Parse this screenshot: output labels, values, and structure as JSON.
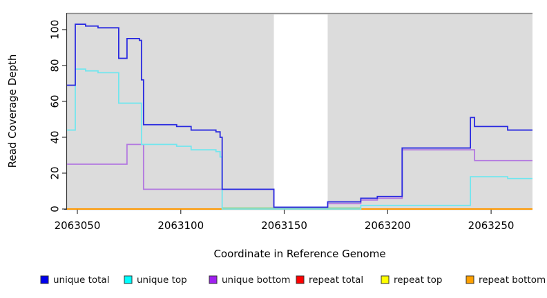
{
  "figure": {
    "background": "#ffffff",
    "plot_background": "#dcdcdc",
    "axis_color": "#333333",
    "top_border_color": "#8c8c8c",
    "text_color": "#000000"
  },
  "chart_data": {
    "type": "line",
    "style": "step",
    "title": "",
    "xlabel": "Coordinate in Reference Genome",
    "ylabel": "Read Coverage Depth",
    "xlim": [
      2063045,
      2063270
    ],
    "ylim": [
      0,
      109.2
    ],
    "grid": false,
    "x_ticks": [
      2063050,
      2063100,
      2063150,
      2063200,
      2063250
    ],
    "x_tick_labels": [
      "2063050",
      "2063100",
      "2063150",
      "2063200",
      "2063250"
    ],
    "y_ticks": [
      0,
      20,
      40,
      60,
      80,
      100
    ],
    "y_tick_labels": [
      "0",
      "20",
      "40",
      "60",
      "80",
      "100"
    ],
    "highlight_region": {
      "x_start": 2063145,
      "x_end": 2063171,
      "color": "#ffffff",
      "meaning": "uncovered gap band drawn over gray background"
    },
    "baseline_artifact": {
      "color": "#90d795",
      "x_start": 2063120,
      "x_end": 2063187,
      "y": 0.6,
      "meaning": "green blend where cyan/yellow zero lines overlap"
    },
    "series": [
      {
        "name": "unique total",
        "line_color": "#2a2ae0",
        "points": [
          [
            2063045,
            69
          ],
          [
            2063049,
            103
          ],
          [
            2063054,
            102
          ],
          [
            2063060,
            101
          ],
          [
            2063070,
            84
          ],
          [
            2063074,
            95
          ],
          [
            2063080,
            94
          ],
          [
            2063081,
            72
          ],
          [
            2063082,
            47
          ],
          [
            2063098,
            46
          ],
          [
            2063105,
            44
          ],
          [
            2063117,
            43
          ],
          [
            2063119,
            40
          ],
          [
            2063120,
            11
          ],
          [
            2063145,
            1
          ],
          [
            2063171,
            4
          ],
          [
            2063187,
            6
          ],
          [
            2063195,
            7
          ],
          [
            2063207,
            34
          ],
          [
            2063240,
            51
          ],
          [
            2063242,
            46
          ],
          [
            2063258,
            44
          ]
        ]
      },
      {
        "name": "unique top",
        "line_color": "#72e6ee",
        "points": [
          [
            2063045,
            44
          ],
          [
            2063049,
            78
          ],
          [
            2063054,
            77
          ],
          [
            2063060,
            76
          ],
          [
            2063070,
            59
          ],
          [
            2063081,
            36
          ],
          [
            2063098,
            35
          ],
          [
            2063105,
            33
          ],
          [
            2063117,
            32
          ],
          [
            2063119,
            29
          ],
          [
            2063120,
            0
          ],
          [
            2063187,
            2
          ],
          [
            2063240,
            18
          ],
          [
            2063258,
            17
          ]
        ]
      },
      {
        "name": "unique bottom",
        "line_color": "#b278e0",
        "points": [
          [
            2063045,
            25
          ],
          [
            2063074,
            36
          ],
          [
            2063082,
            11
          ],
          [
            2063145,
            1
          ],
          [
            2063171,
            3
          ],
          [
            2063187,
            5
          ],
          [
            2063195,
            6
          ],
          [
            2063207,
            33
          ],
          [
            2063242,
            27
          ]
        ]
      },
      {
        "name": "repeat total",
        "line_color": "#e80000",
        "points": [
          [
            2063045,
            0
          ]
        ]
      },
      {
        "name": "repeat top",
        "line_color": "#ffff00",
        "points": [
          [
            2063045,
            0
          ]
        ]
      },
      {
        "name": "repeat bottom",
        "line_color": "#ff9800",
        "points": [
          [
            2063045,
            0
          ]
        ]
      }
    ]
  },
  "legend": {
    "items": [
      {
        "label": "unique total",
        "swatch_color": "#0000ee"
      },
      {
        "label": "unique top",
        "swatch_color": "#00ffff"
      },
      {
        "label": "unique bottom",
        "swatch_color": "#a020f0"
      },
      {
        "label": "repeat total",
        "swatch_color": "#ff0000"
      },
      {
        "label": "repeat top",
        "swatch_color": "#ffff00"
      },
      {
        "label": "repeat bottom",
        "swatch_color": "#ffa000"
      }
    ]
  }
}
